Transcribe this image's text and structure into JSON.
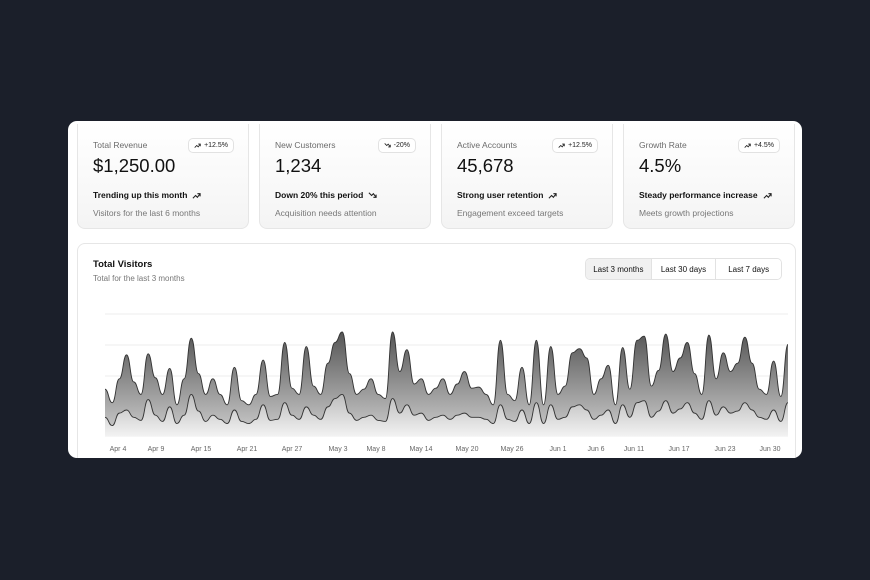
{
  "cards": [
    {
      "title": "Total Revenue",
      "badge": "+12.5%",
      "badge_dir": "up",
      "value": "$1,250.00",
      "trend": "Trending up this month",
      "trend_dir": "up",
      "sub": "Visitors for the last 6 months"
    },
    {
      "title": "New Customers",
      "badge": "-20%",
      "badge_dir": "down",
      "value": "1,234",
      "trend": "Down 20% this period",
      "trend_dir": "down",
      "sub": "Acquisition needs attention"
    },
    {
      "title": "Active Accounts",
      "badge": "+12.5%",
      "badge_dir": "up",
      "value": "45,678",
      "trend": "Strong user retention",
      "trend_dir": "up",
      "sub": "Engagement exceed targets"
    },
    {
      "title": "Growth Rate",
      "badge": "+4.5%",
      "badge_dir": "up",
      "value": "4.5%",
      "trend": "Steady performance increase",
      "trend_dir": "up",
      "sub": "Meets growth projections"
    }
  ],
  "visitors": {
    "title": "Total Visitors",
    "subtitle": "Total for the last 3 months",
    "ranges": [
      "Last 3 months",
      "Last 30 days",
      "Last 7 days"
    ],
    "selected_range": "Last 3 months"
  },
  "chart_data": {
    "type": "area",
    "title": "Total Visitors",
    "tick_labels": [
      "Apr 4",
      "Apr 9",
      "Apr 15",
      "Apr 21",
      "Apr 27",
      "May 3",
      "May 8",
      "May 14",
      "May 20",
      "May 26",
      "Jun 1",
      "Jun 6",
      "Jun 11",
      "Jun 17",
      "Jun 23",
      "Jun 30"
    ],
    "grid": true,
    "series": [
      {
        "values": [
          0.45,
          0.32,
          0.55,
          0.78,
          0.52,
          0.4,
          0.79,
          0.56,
          0.4,
          0.65,
          0.3,
          0.55,
          0.94,
          0.6,
          0.4,
          0.55,
          0.4,
          0.3,
          0.66,
          0.34,
          0.3,
          0.4,
          0.73,
          0.38,
          0.4,
          0.9,
          0.46,
          0.4,
          0.86,
          0.48,
          0.4,
          0.7,
          0.9,
          1.0,
          0.6,
          0.4,
          0.45,
          0.55,
          0.4,
          0.36,
          1.0,
          0.62,
          0.83,
          0.5,
          0.55,
          0.4,
          0.46,
          0.55,
          0.4,
          0.5,
          0.62,
          0.46,
          0.47,
          0.4,
          0.3,
          0.92,
          0.4,
          0.34,
          0.66,
          0.3,
          0.92,
          0.3,
          0.86,
          0.4,
          0.48,
          0.8,
          0.84,
          0.75,
          0.4,
          0.55,
          0.68,
          0.3,
          0.85,
          0.45,
          0.92,
          0.96,
          0.48,
          0.63,
          0.98,
          0.62,
          0.75,
          0.9,
          0.6,
          0.4,
          0.97,
          0.55,
          0.8,
          0.62,
          0.7,
          0.95,
          0.7,
          0.45,
          0.4,
          0.72,
          0.38,
          0.88
        ]
      },
      {
        "values": [
          0.18,
          0.1,
          0.22,
          0.25,
          0.18,
          0.15,
          0.35,
          0.2,
          0.14,
          0.28,
          0.12,
          0.2,
          0.4,
          0.24,
          0.14,
          0.2,
          0.16,
          0.12,
          0.25,
          0.14,
          0.12,
          0.16,
          0.3,
          0.15,
          0.16,
          0.32,
          0.2,
          0.16,
          0.28,
          0.2,
          0.16,
          0.28,
          0.36,
          0.4,
          0.22,
          0.15,
          0.18,
          0.2,
          0.15,
          0.14,
          0.36,
          0.22,
          0.3,
          0.2,
          0.22,
          0.15,
          0.18,
          0.2,
          0.16,
          0.2,
          0.22,
          0.18,
          0.18,
          0.16,
          0.12,
          0.3,
          0.16,
          0.14,
          0.25,
          0.12,
          0.32,
          0.12,
          0.3,
          0.16,
          0.18,
          0.28,
          0.3,
          0.25,
          0.16,
          0.2,
          0.25,
          0.12,
          0.3,
          0.18,
          0.32,
          0.34,
          0.18,
          0.24,
          0.34,
          0.22,
          0.26,
          0.32,
          0.22,
          0.16,
          0.34,
          0.2,
          0.28,
          0.22,
          0.24,
          0.32,
          0.25,
          0.18,
          0.16,
          0.25,
          0.14,
          0.32
        ]
      }
    ]
  }
}
